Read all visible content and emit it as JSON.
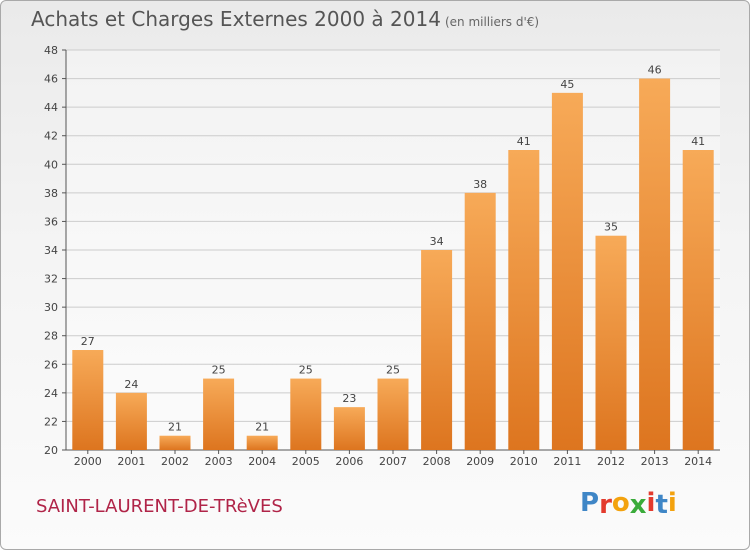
{
  "header": {
    "title": "Achats et Charges Externes 2000 à 2014",
    "unit": "(en milliers d'€)"
  },
  "footer": {
    "commune": "SAINT-LAURENT-DE-TRèVES",
    "logo_letters": [
      "P",
      "r",
      "o",
      "x",
      "i",
      "t",
      "i"
    ]
  },
  "colors": {
    "bar_light": "#f7aa58",
    "bar_dark": "#dd751f",
    "grid": "#cccccc",
    "axis": "#555555",
    "logo": [
      "#3f86c6",
      "#e33a2d",
      "#f3a20e",
      "#3aab3a",
      "#e33a2d",
      "#3f86c6",
      "#f3a20e"
    ]
  },
  "chart_data": {
    "type": "bar",
    "categories": [
      "2000",
      "2001",
      "2002",
      "2003",
      "2004",
      "2005",
      "2006",
      "2007",
      "2008",
      "2009",
      "2010",
      "2011",
      "2012",
      "2013",
      "2014"
    ],
    "values": [
      27,
      24,
      21,
      25,
      21,
      25,
      23,
      25,
      34,
      38,
      41,
      45,
      35,
      46,
      41
    ],
    "ylim": [
      20,
      48
    ],
    "yticks": [
      20,
      22,
      24,
      26,
      28,
      30,
      32,
      34,
      36,
      38,
      40,
      42,
      44,
      46,
      48
    ],
    "grid": true,
    "data_labels": true
  }
}
